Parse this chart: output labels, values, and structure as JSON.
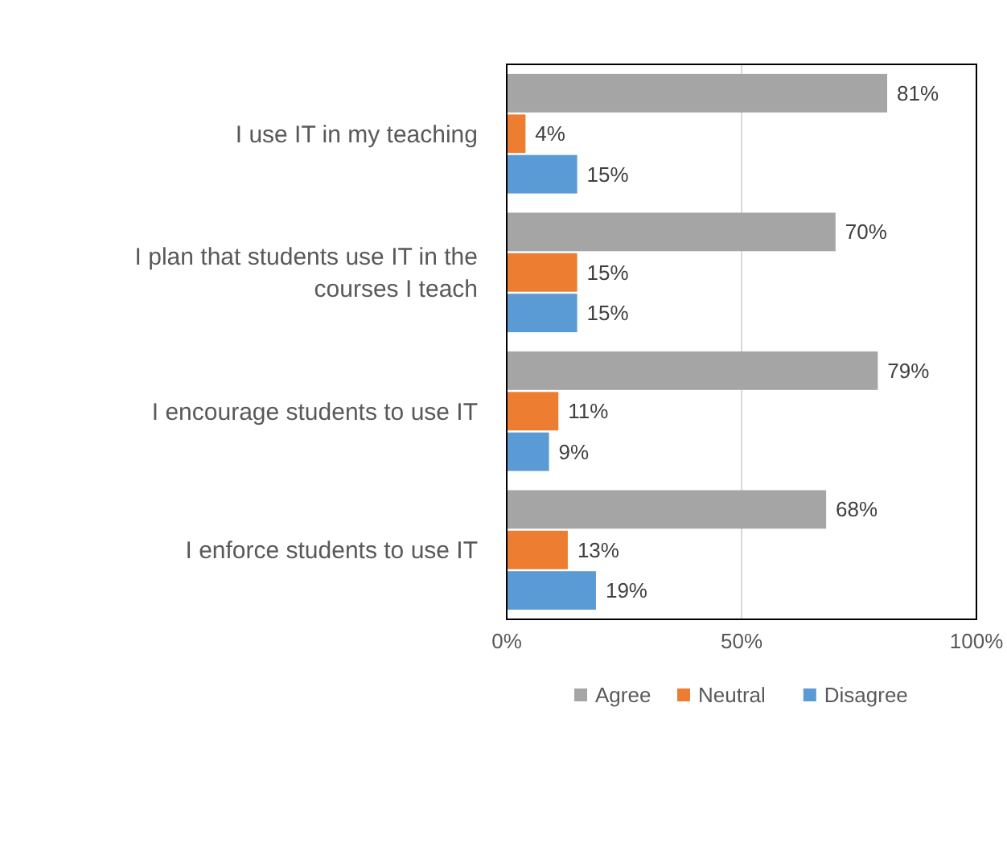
{
  "chart_data": {
    "type": "bar",
    "orientation": "horizontal",
    "categories": [
      "I use IT in my teaching",
      "I plan that students use IT in the courses I teach",
      "I encourage students to use IT",
      "I enforce students to use IT"
    ],
    "series": [
      {
        "name": "Agree",
        "color": "#a5a5a5",
        "values": [
          81,
          70,
          79,
          68
        ],
        "value_labels": [
          "81%",
          "70%",
          "79%",
          "68%"
        ]
      },
      {
        "name": "Neutral",
        "color": "#ed7d31",
        "values": [
          4,
          15,
          11,
          13
        ],
        "value_labels": [
          "4%",
          "15%",
          "11%",
          "13%"
        ]
      },
      {
        "name": "Disagree",
        "color": "#5b9bd5",
        "values": [
          15,
          15,
          9,
          19
        ],
        "value_labels": [
          "15%",
          "15%",
          "9%",
          "19%"
        ]
      }
    ],
    "xlim": [
      0,
      100
    ],
    "xticks": [
      {
        "value": 0,
        "label": "0%"
      },
      {
        "value": 50,
        "label": "50%"
      },
      {
        "value": 100,
        "label": "100%"
      }
    ],
    "grid": "x",
    "legend": "bottom"
  }
}
